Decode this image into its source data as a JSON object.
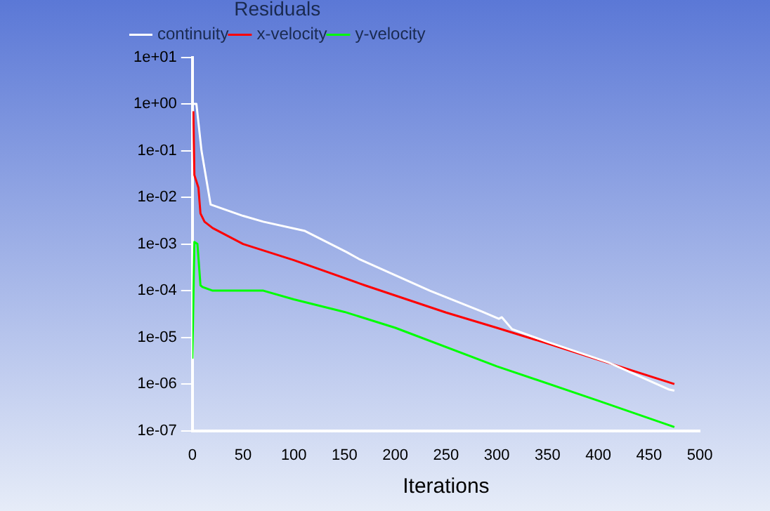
{
  "chart_data": {
    "type": "line",
    "xlabel": "Iterations",
    "legend_title": "Residuals",
    "legend": "top left",
    "log": "y",
    "grid": false,
    "marker": "none",
    "line_style": "solid",
    "xlim": [
      0,
      500
    ],
    "xticks": [
      0,
      50,
      100,
      150,
      200,
      250,
      300,
      350,
      400,
      450,
      500
    ],
    "ylim": [
      1e-07,
      10
    ],
    "yticks": [
      {
        "value": 10,
        "label": "1e+01"
      },
      {
        "value": 1,
        "label": "1e+00"
      },
      {
        "value": 0.1,
        "label": "1e-01"
      },
      {
        "value": 0.01,
        "label": "1e-02"
      },
      {
        "value": 0.001,
        "label": "1e-03"
      },
      {
        "value": 0.0001,
        "label": "1e-04"
      },
      {
        "value": 1e-05,
        "label": "1e-05"
      },
      {
        "value": 1e-06,
        "label": "1e-06"
      },
      {
        "value": 1e-07,
        "label": "1e-07"
      }
    ],
    "series": [
      {
        "name": "continuity",
        "color": "#ffffff",
        "x": [
          1,
          4,
          9,
          18,
          50,
          70,
          111,
          152,
          164,
          234,
          285,
          302,
          305,
          315,
          350,
          410,
          470,
          475
        ],
        "values": [
          1,
          1,
          0.1,
          0.007,
          0.004,
          0.003,
          0.0019,
          0.00067,
          0.00048,
          0.0001,
          3.6e-05,
          2.5e-05,
          2.7e-05,
          1.5e-05,
          8e-06,
          2.9e-06,
          7.6e-07,
          7.2e-07
        ]
      },
      {
        "name": "x-velocity",
        "color": "#ff0000",
        "x": [
          1,
          2,
          6,
          8,
          12,
          20,
          50,
          100,
          170,
          250,
          300,
          350,
          475
        ],
        "values": [
          0.7,
          0.03,
          0.016,
          0.0045,
          0.003,
          0.0022,
          0.001,
          0.00045,
          0.00013,
          3.4e-05,
          1.6e-05,
          7.4e-06,
          1e-06
        ]
      },
      {
        "name": "y-velocity",
        "color": "#00ff00",
        "x": [
          0,
          2,
          5,
          8,
          10,
          20,
          70,
          100,
          150,
          200,
          300,
          400,
          475
        ],
        "values": [
          3.5e-06,
          0.0011,
          0.001,
          0.00013,
          0.00012,
          0.0001,
          0.0001,
          6.5e-05,
          3.5e-05,
          1.6e-05,
          2.4e-06,
          4.4e-07,
          1.2e-07
        ]
      }
    ]
  }
}
